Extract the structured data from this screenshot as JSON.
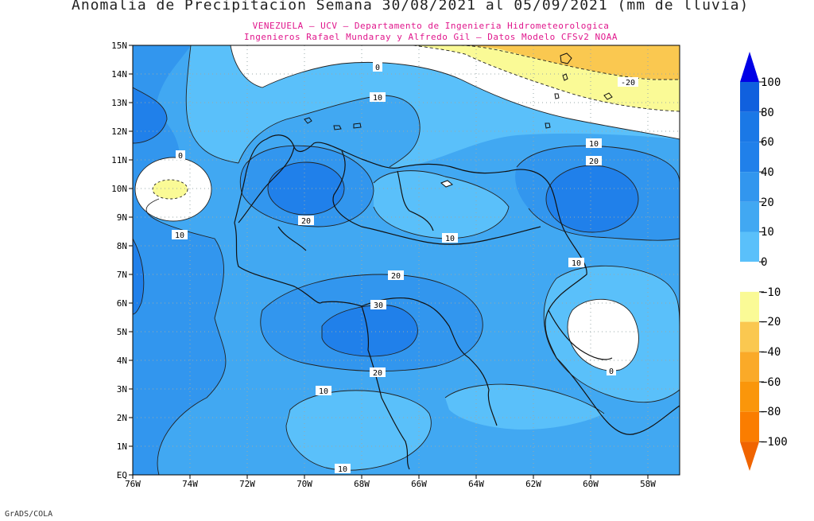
{
  "title": "Anomalia de Precipitacion Semana 30/08/2021 al 05/09/2021 (mm de lluvia)",
  "subtitle_line1": "VENEZUELA – UCV – Departamento de Ingenieria Hidrometeorologica",
  "subtitle_line2": "Ingenieros Rafael Mundaray y Alfredo Gil – Datos Modelo CFSv2 NOAA",
  "credit": "GrADS/COLA",
  "map": {
    "lat_labels": [
      "15N",
      "14N",
      "13N",
      "12N",
      "11N",
      "10N",
      "9N",
      "8N",
      "7N",
      "6N",
      "5N",
      "4N",
      "3N",
      "2N",
      "1N",
      "EQ"
    ],
    "lon_labels": [
      "76W",
      "74W",
      "72W",
      "70W",
      "68W",
      "66W",
      "64W",
      "62W",
      "60W",
      "58W"
    ],
    "contour_labels": [
      {
        "text": "0",
        "id": "c0-north"
      },
      {
        "text": "10",
        "id": "c10-north"
      },
      {
        "text": "-20",
        "id": "cm20"
      },
      {
        "text": "0",
        "id": "c0-west"
      },
      {
        "text": "10",
        "id": "c10-west"
      },
      {
        "text": "20",
        "id": "c20-venez"
      },
      {
        "text": "10",
        "id": "c10-east1"
      },
      {
        "text": "20",
        "id": "c20-east"
      },
      {
        "text": "10",
        "id": "c10-center"
      },
      {
        "text": "10",
        "id": "c10-guyana"
      },
      {
        "text": "20",
        "id": "c20-south1"
      },
      {
        "text": "30",
        "id": "c30"
      },
      {
        "text": "20",
        "id": "c20-south2"
      },
      {
        "text": "10",
        "id": "c10-south1"
      },
      {
        "text": "0",
        "id": "c0-guyana"
      },
      {
        "text": "10",
        "id": "c10-south2"
      }
    ]
  },
  "colorbar": {
    "labels": [
      "100",
      "80",
      "60",
      "40",
      "20",
      "10",
      "0",
      "−10",
      "−20",
      "−40",
      "−60",
      "−80",
      "−100"
    ],
    "colors": {
      "gt100": "#0000e6",
      "80_100": "#1060de",
      "60_80": "#1a78e6",
      "40_60": "#2080ea",
      "20_40": "#3296ee",
      "10_20": "#41a8f2",
      "0_10": "#5ac0fa",
      "m10_0": "#ffffff",
      "m20_m10": "#fafa96",
      "m40_m20": "#fac850",
      "m60_m40": "#faaa28",
      "m80_m60": "#fa960a",
      "m100_m80": "#fa7d00",
      "lt_m100": "#f06400"
    }
  }
}
